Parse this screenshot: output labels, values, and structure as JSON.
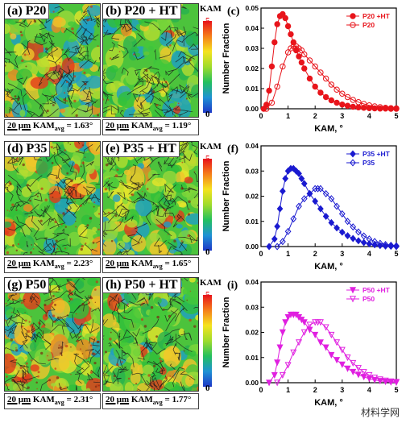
{
  "rows": [
    {
      "left": {
        "label": "(a) P20",
        "kam_prefix": "KAM",
        "kam_sub": "avg",
        "kam_value": " = 1.63°",
        "scale": "20 μm"
      },
      "right": {
        "label": "(b) P20 + HT",
        "kam_prefix": "KAM",
        "kam_sub": "avg",
        "kam_value": " = 1.19°",
        "scale": "20 μm"
      },
      "colorbar": {
        "title": "KAM",
        "max": "5",
        "min": "0"
      },
      "chart_label": "(c)"
    },
    {
      "left": {
        "label": "(d) P35",
        "kam_prefix": "KAM",
        "kam_sub": "avg",
        "kam_value": " = 2.23°",
        "scale": "20 μm"
      },
      "right": {
        "label": "(e) P35 + HT",
        "kam_prefix": "KAM",
        "kam_sub": "avg",
        "kam_value": " = 1.65°",
        "scale": "20 μm"
      },
      "colorbar": {
        "title": "KAM",
        "max": "5",
        "min": "0"
      },
      "chart_label": "(f)"
    },
    {
      "left": {
        "label": "(g) P50",
        "kam_prefix": "KAM",
        "kam_sub": "avg",
        "kam_value": " = 2.31°",
        "scale": "20 μm"
      },
      "right": {
        "label": "(h) P50 + HT",
        "kam_prefix": "KAM",
        "kam_sub": "avg",
        "kam_value": " = 1.77°",
        "scale": "20 μm"
      },
      "colorbar": {
        "title": "KAM",
        "max": "5",
        "min": "0"
      },
      "chart_label": "(i)"
    }
  ],
  "watermark": "材料学网",
  "chart_data": [
    {
      "type": "line",
      "title": "",
      "xlabel": "KAM, °",
      "ylabel": "Number Fraction",
      "xlim": [
        0,
        5
      ],
      "ylim": [
        0,
        0.05
      ],
      "xticks": [
        "0",
        "1",
        "2",
        "3",
        "4",
        "5"
      ],
      "yticks": [
        "0.00",
        "0.01",
        "0.02",
        "0.03",
        "0.04",
        "0.05"
      ],
      "legend_position": "top-right",
      "color": "#e8141b",
      "series": [
        {
          "name": "P20 +HT",
          "marker": "filled-circle",
          "x": [
            0.1,
            0.2,
            0.3,
            0.4,
            0.5,
            0.6,
            0.7,
            0.8,
            0.9,
            1.0,
            1.1,
            1.2,
            1.3,
            1.4,
            1.5,
            1.6,
            1.8,
            2.0,
            2.2,
            2.4,
            2.6,
            2.8,
            3.0,
            3.2,
            3.4,
            3.6,
            3.8,
            4.0,
            4.2,
            4.4,
            4.6,
            4.8,
            5.0
          ],
          "y": [
            0.0,
            0.002,
            0.009,
            0.021,
            0.033,
            0.042,
            0.046,
            0.047,
            0.045,
            0.041,
            0.037,
            0.033,
            0.029,
            0.026,
            0.023,
            0.02,
            0.015,
            0.011,
            0.008,
            0.0058,
            0.0042,
            0.003,
            0.0021,
            0.0015,
            0.001,
            0.0007,
            0.0005,
            0.0003,
            0.0002,
            0.0001,
            0.0001,
            0.0,
            0.0
          ]
        },
        {
          "name": "P20",
          "marker": "open-circle",
          "x": [
            0.2,
            0.4,
            0.6,
            0.8,
            1.0,
            1.1,
            1.2,
            1.3,
            1.4,
            1.5,
            1.6,
            1.8,
            2.0,
            2.2,
            2.4,
            2.6,
            2.8,
            3.0,
            3.2,
            3.4,
            3.6,
            3.8,
            4.0,
            4.2,
            4.4,
            4.6,
            4.8,
            5.0
          ],
          "y": [
            0.0,
            0.003,
            0.011,
            0.021,
            0.028,
            0.03,
            0.031,
            0.031,
            0.03,
            0.029,
            0.027,
            0.024,
            0.021,
            0.018,
            0.015,
            0.012,
            0.0095,
            0.0075,
            0.0058,
            0.0044,
            0.0033,
            0.0024,
            0.0017,
            0.0012,
            0.0008,
            0.0005,
            0.0003,
            0.0002
          ]
        }
      ]
    },
    {
      "type": "line",
      "title": "",
      "xlabel": "KAM, °",
      "ylabel": "Number Fraction",
      "xlim": [
        0,
        5
      ],
      "ylim": [
        0,
        0.04
      ],
      "xticks": [
        "0",
        "1",
        "2",
        "3",
        "4",
        "5"
      ],
      "yticks": [
        "0.00",
        "0.01",
        "0.02",
        "0.03",
        "0.04"
      ],
      "legend_position": "top-right",
      "color": "#1a1ad0",
      "series": [
        {
          "name": "P35 +HT",
          "marker": "filled-diamond",
          "x": [
            0.3,
            0.5,
            0.6,
            0.7,
            0.8,
            0.9,
            1.0,
            1.1,
            1.2,
            1.3,
            1.4,
            1.5,
            1.6,
            1.8,
            2.0,
            2.2,
            2.4,
            2.6,
            2.8,
            3.0,
            3.2,
            3.4,
            3.6,
            3.8,
            4.0,
            4.2,
            4.4,
            4.6,
            4.8,
            5.0
          ],
          "y": [
            0.0,
            0.003,
            0.008,
            0.015,
            0.022,
            0.027,
            0.03,
            0.031,
            0.031,
            0.03,
            0.029,
            0.027,
            0.025,
            0.021,
            0.018,
            0.015,
            0.012,
            0.0095,
            0.0074,
            0.0057,
            0.0043,
            0.0032,
            0.0023,
            0.0016,
            0.0011,
            0.0007,
            0.0004,
            0.0002,
            0.0001,
            0.0
          ]
        },
        {
          "name": "P35",
          "marker": "open-diamond",
          "x": [
            0.6,
            0.8,
            1.0,
            1.2,
            1.4,
            1.6,
            1.8,
            2.0,
            2.1,
            2.2,
            2.4,
            2.6,
            2.8,
            3.0,
            3.2,
            3.4,
            3.6,
            3.8,
            4.0,
            4.2,
            4.4,
            4.6,
            4.8,
            5.0
          ],
          "y": [
            0.0,
            0.002,
            0.006,
            0.011,
            0.016,
            0.019,
            0.021,
            0.023,
            0.023,
            0.023,
            0.021,
            0.019,
            0.016,
            0.013,
            0.01,
            0.0078,
            0.0058,
            0.0042,
            0.003,
            0.002,
            0.0013,
            0.0008,
            0.0005,
            0.0003
          ]
        }
      ]
    },
    {
      "type": "line",
      "title": "",
      "xlabel": "KAM, °",
      "ylabel": "Number Fraction",
      "xlim": [
        0,
        5
      ],
      "ylim": [
        0,
        0.04
      ],
      "xticks": [
        "0",
        "1",
        "2",
        "3",
        "4",
        "5"
      ],
      "yticks": [
        "0.00",
        "0.01",
        "0.02",
        "0.03",
        "0.04"
      ],
      "legend_position": "top-right",
      "color": "#e020e0",
      "series": [
        {
          "name": "P50 +HT",
          "marker": "filled-triangle-down",
          "x": [
            0.3,
            0.5,
            0.6,
            0.7,
            0.8,
            0.9,
            1.0,
            1.1,
            1.2,
            1.3,
            1.4,
            1.5,
            1.6,
            1.8,
            2.0,
            2.2,
            2.4,
            2.6,
            2.8,
            3.0,
            3.2,
            3.4,
            3.6,
            3.8,
            4.0,
            4.2,
            4.4,
            4.6,
            4.8,
            5.0
          ],
          "y": [
            0.0,
            0.003,
            0.008,
            0.014,
            0.02,
            0.024,
            0.026,
            0.027,
            0.027,
            0.027,
            0.026,
            0.025,
            0.024,
            0.021,
            0.019,
            0.016,
            0.014,
            0.011,
            0.009,
            0.0072,
            0.0056,
            0.0043,
            0.0032,
            0.0023,
            0.0016,
            0.0011,
            0.0007,
            0.0004,
            0.0002,
            0.0001
          ]
        },
        {
          "name": "P50",
          "marker": "open-triangle-down",
          "x": [
            0.6,
            0.8,
            1.0,
            1.2,
            1.4,
            1.6,
            1.8,
            2.0,
            2.1,
            2.2,
            2.4,
            2.6,
            2.8,
            3.0,
            3.2,
            3.4,
            3.6,
            3.8,
            4.0,
            4.2,
            4.4,
            4.6,
            4.8,
            5.0
          ],
          "y": [
            0.0,
            0.003,
            0.007,
            0.012,
            0.016,
            0.02,
            0.023,
            0.024,
            0.024,
            0.024,
            0.022,
            0.019,
            0.016,
            0.013,
            0.01,
            0.0078,
            0.0058,
            0.0042,
            0.003,
            0.002,
            0.0013,
            0.0008,
            0.0005,
            0.0003
          ]
        }
      ]
    }
  ]
}
